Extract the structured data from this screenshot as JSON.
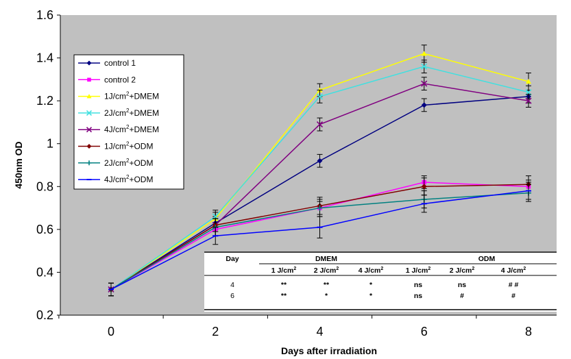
{
  "chart_data": {
    "type": "line",
    "title": "",
    "xlabel": "Days after irradiation",
    "ylabel": "450nm OD",
    "x": [
      0,
      2,
      4,
      6,
      8
    ],
    "xlim": [
      -1,
      8.4
    ],
    "ylim": [
      0.2,
      1.6
    ],
    "yticks": [
      0.2,
      0.4,
      0.6,
      0.8,
      1,
      1.2,
      1.4,
      1.6
    ],
    "ytick_labels": [
      "0.2",
      "0.4",
      "0.6",
      "0.8",
      "1",
      "1.2",
      "1.4",
      "1.6"
    ],
    "xtick_labels": [
      "0",
      "2",
      "4",
      "6",
      "8"
    ],
    "grid": false,
    "legend_position": "top-left",
    "plot_background": "#c0c0c0",
    "series": [
      {
        "name": "control 1",
        "sup": "",
        "suffix": "",
        "color": "#000080",
        "marker": "diamond",
        "values": [
          0.32,
          0.63,
          0.92,
          1.18,
          1.22
        ],
        "err": [
          0.03,
          0.03,
          0.03,
          0.03,
          0.03
        ]
      },
      {
        "name": "control 2",
        "sup": "",
        "suffix": "",
        "color": "#ff00ff",
        "marker": "square",
        "values": [
          0.32,
          0.6,
          0.7,
          0.82,
          0.8
        ],
        "err": [
          0.03,
          0.03,
          0.03,
          0.03,
          0.03
        ]
      },
      {
        "name": "1J/cm",
        "sup": "2",
        "suffix": "+DMEM",
        "color": "#ffff00",
        "marker": "triangle",
        "values": [
          0.32,
          0.65,
          1.25,
          1.42,
          1.29
        ],
        "err": [
          0.03,
          0.03,
          0.03,
          0.04,
          0.04
        ]
      },
      {
        "name": "2J/cm",
        "sup": "2",
        "suffix": "+DMEM",
        "color": "#40e0e0",
        "marker": "x",
        "values": [
          0.32,
          0.66,
          1.22,
          1.36,
          1.24
        ],
        "err": [
          0.03,
          0.03,
          0.03,
          0.03,
          0.03
        ]
      },
      {
        "name": "4J/cm",
        "sup": "2",
        "suffix": "+DMEM",
        "color": "#800080",
        "marker": "x",
        "values": [
          0.32,
          0.62,
          1.09,
          1.28,
          1.2
        ],
        "err": [
          0.03,
          0.03,
          0.03,
          0.03,
          0.03
        ]
      },
      {
        "name": "1J/cm",
        "sup": "2",
        "suffix": "+ODM",
        "color": "#800000",
        "marker": "diamond",
        "values": [
          0.32,
          0.62,
          0.71,
          0.8,
          0.81
        ],
        "err": [
          0.03,
          0.03,
          0.04,
          0.04,
          0.04
        ]
      },
      {
        "name": "2J/cm",
        "sup": "2",
        "suffix": "+ODM",
        "color": "#008080",
        "marker": "plus",
        "values": [
          0.32,
          0.61,
          0.7,
          0.74,
          0.77
        ],
        "err": [
          0.03,
          0.04,
          0.04,
          0.04,
          0.04
        ]
      },
      {
        "name": "4J/cm",
        "sup": "2",
        "suffix": "+ODM",
        "color": "#0000ff",
        "marker": "dash",
        "values": [
          0.32,
          0.57,
          0.61,
          0.72,
          0.78
        ],
        "err": [
          0.03,
          0.04,
          0.05,
          0.04,
          0.04
        ]
      }
    ],
    "table": {
      "col_day": "Day",
      "group_dmem": "DMEM",
      "group_odm": "ODM",
      "subheaders": [
        {
          "text": "1 J/cm",
          "sup": "2"
        },
        {
          "text": "2 J/cm",
          "sup": "2"
        },
        {
          "text": "4 J/cm",
          "sup": "2"
        },
        {
          "text": "1 J/cm",
          "sup": "2"
        },
        {
          "text": "2 J/cm",
          "sup": "2"
        },
        {
          "text": "4 J/cm",
          "sup": "2"
        }
      ],
      "rows": [
        {
          "day": "4",
          "cells": [
            "**",
            "**",
            "*",
            "ns",
            "ns",
            "# #"
          ]
        },
        {
          "day": "6",
          "cells": [
            "**",
            "*",
            "*",
            "ns",
            "#",
            "#"
          ]
        }
      ]
    }
  }
}
